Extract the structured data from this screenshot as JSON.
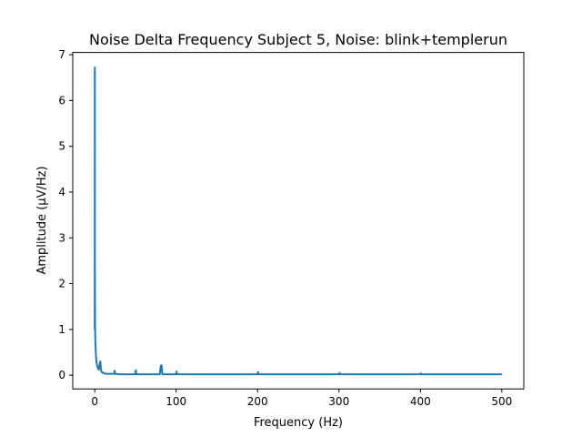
{
  "chart_data": {
    "type": "line",
    "title": "Noise Delta Frequency Subject 5, Noise: blink+templerun",
    "xlabel": "Frequency (Hz)",
    "ylabel": "Amplitude (μV/Hz)",
    "xlim": [
      -27,
      527
    ],
    "ylim": [
      -0.3,
      7.05
    ],
    "xticks": [
      0,
      100,
      200,
      300,
      400,
      500
    ],
    "yticks": [
      0,
      1,
      2,
      3,
      4,
      5,
      6,
      7
    ],
    "grid": false,
    "legend": "none",
    "colors": {
      "line": "#1f77b4"
    },
    "series": [
      {
        "x": [
          0,
          0.05,
          0.1,
          0.15,
          0.2,
          0.3,
          0.4,
          0.5,
          0.7,
          1.0,
          1.3,
          1.6,
          2.0,
          2.5,
          3.0,
          4.0,
          5.0,
          6.0,
          7.0,
          7.5,
          8.0,
          9.0,
          10,
          12,
          15,
          20,
          24,
          24.5,
          25,
          30,
          40,
          50,
          50.5,
          51,
          60,
          70,
          80,
          81,
          82,
          83,
          90,
          100,
          100.5,
          101,
          120,
          150,
          200,
          200.5,
          201,
          250,
          300,
          300.5,
          301,
          350,
          400,
          400.5,
          401,
          450,
          500
        ],
        "y": [
          1.0,
          3.5,
          6.72,
          4.0,
          2.2,
          1.75,
          1.2,
          1.0,
          0.75,
          0.65,
          0.5,
          0.4,
          0.3,
          0.25,
          0.2,
          0.15,
          0.12,
          0.25,
          0.3,
          0.15,
          0.08,
          0.07,
          0.05,
          0.04,
          0.03,
          0.03,
          0.03,
          0.1,
          0.03,
          0.02,
          0.02,
          0.02,
          0.11,
          0.02,
          0.02,
          0.02,
          0.02,
          0.2,
          0.22,
          0.02,
          0.02,
          0.02,
          0.08,
          0.02,
          0.02,
          0.02,
          0.02,
          0.07,
          0.02,
          0.02,
          0.02,
          0.05,
          0.02,
          0.02,
          0.02,
          0.04,
          0.02,
          0.02,
          0.02
        ]
      }
    ]
  }
}
